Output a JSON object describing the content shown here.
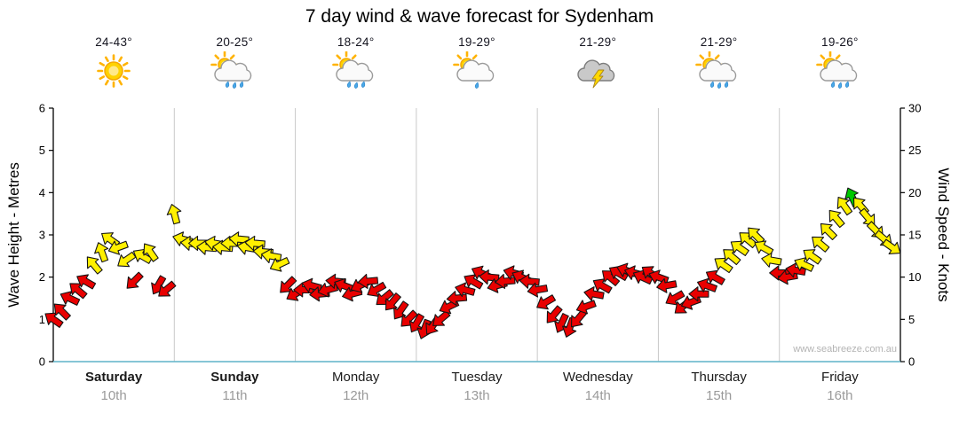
{
  "title": "7 day wind & wave forecast for Sydenham",
  "watermark": "www.seabreeze.com.au",
  "axes": {
    "left_title": "Wave Height - Metres",
    "right_title": "Wind Speed - Knots",
    "left_ticks": [
      0,
      1,
      2,
      3,
      4,
      5,
      6
    ],
    "right_ticks": [
      0,
      5,
      10,
      15,
      20,
      25,
      30
    ],
    "left_range": [
      0,
      6
    ],
    "right_range": [
      0,
      30
    ]
  },
  "days": [
    {
      "name": "Saturday",
      "date": "10th",
      "temp": "24-43°",
      "icon": "sunny",
      "bold": true
    },
    {
      "name": "Sunday",
      "date": "11th",
      "temp": "20-25°",
      "icon": "sun-showers",
      "bold": true
    },
    {
      "name": "Monday",
      "date": "12th",
      "temp": "18-24°",
      "icon": "sun-showers",
      "bold": false
    },
    {
      "name": "Tuesday",
      "date": "13th",
      "temp": "19-29°",
      "icon": "sun-cloud-shower",
      "bold": false
    },
    {
      "name": "Wednesday",
      "date": "14th",
      "temp": "21-29°",
      "icon": "thunderstorm",
      "bold": false
    },
    {
      "name": "Thursday",
      "date": "15th",
      "temp": "21-29°",
      "icon": "sun-showers",
      "bold": false
    },
    {
      "name": "Friday",
      "date": "16th",
      "temp": "19-26°",
      "icon": "sun-showers",
      "bold": false
    }
  ],
  "chart_data": {
    "type": "wind-arrows",
    "title": "7 day wind & wave forecast for Sydenham",
    "x_unit": "hours",
    "x_range": [
      0,
      168
    ],
    "y_axis": "knots",
    "y_range": [
      0,
      30
    ],
    "grid": "vertical-day-separators",
    "colors": {
      "light": "#E80000",
      "moderate": "#FFF000",
      "fresh": "#00C800"
    },
    "color_thresholds": {
      "yellow_min": 11,
      "green_min": 19
    },
    "points_format": [
      "hours_from_start",
      "wind_speed_knots",
      "arrow_direction_deg"
    ],
    "points": [
      [
        0,
        5,
        215
      ],
      [
        1.6,
        6,
        225
      ],
      [
        3.2,
        7.5,
        205
      ],
      [
        4.8,
        8.5,
        220
      ],
      [
        6.4,
        9.5,
        210
      ],
      [
        8,
        11.5,
        230
      ],
      [
        9.6,
        13,
        250
      ],
      [
        11.2,
        14.5,
        215
      ],
      [
        12.8,
        13.5,
        160
      ],
      [
        14.4,
        12,
        145
      ],
      [
        16,
        9.5,
        135
      ],
      [
        17.6,
        12.5,
        210
      ],
      [
        19.2,
        13,
        235
      ],
      [
        20.8,
        9,
        120
      ],
      [
        22.4,
        8.5,
        140
      ],
      [
        24,
        17.5,
        255
      ],
      [
        25.6,
        14.5,
        195
      ],
      [
        27.2,
        14,
        185
      ],
      [
        28.8,
        14,
        180
      ],
      [
        30.4,
        13.5,
        185
      ],
      [
        32,
        14,
        190
      ],
      [
        33.6,
        13.5,
        185
      ],
      [
        35.2,
        14,
        180
      ],
      [
        36.8,
        14.5,
        185
      ],
      [
        38.4,
        13.5,
        190
      ],
      [
        40,
        14,
        185
      ],
      [
        41.6,
        13,
        185
      ],
      [
        43.2,
        12.5,
        190
      ],
      [
        44.8,
        11.5,
        155
      ],
      [
        46.4,
        9,
        135
      ],
      [
        48,
        8,
        150
      ],
      [
        49.6,
        8.5,
        180
      ],
      [
        51.2,
        9,
        195
      ],
      [
        52.8,
        8,
        175
      ],
      [
        54.4,
        8.5,
        165
      ],
      [
        56,
        9.5,
        185
      ],
      [
        57.6,
        9,
        200
      ],
      [
        59.2,
        8,
        165
      ],
      [
        60.8,
        9,
        155
      ],
      [
        62.4,
        9.5,
        175
      ],
      [
        64,
        8.5,
        150
      ],
      [
        65.6,
        7.5,
        140
      ],
      [
        67.2,
        7,
        130
      ],
      [
        68.8,
        6,
        125
      ],
      [
        70.4,
        5,
        135
      ],
      [
        72,
        4.5,
        120
      ],
      [
        73.6,
        3.8,
        110
      ],
      [
        75.2,
        4.2,
        125
      ],
      [
        76.8,
        5,
        140
      ],
      [
        78.4,
        6.5,
        155
      ],
      [
        80,
        7.5,
        175
      ],
      [
        81.6,
        8.5,
        195
      ],
      [
        83.2,
        9.5,
        210
      ],
      [
        84.8,
        10.5,
        205
      ],
      [
        86.4,
        10,
        185
      ],
      [
        88,
        9,
        165
      ],
      [
        89.6,
        9.5,
        175
      ],
      [
        91.2,
        10.5,
        195
      ],
      [
        92.8,
        10,
        205
      ],
      [
        94.4,
        9.5,
        185
      ],
      [
        96,
        8.5,
        170
      ],
      [
        97.6,
        7,
        150
      ],
      [
        99.2,
        5.5,
        130
      ],
      [
        100.8,
        4.5,
        115
      ],
      [
        102.4,
        4,
        110
      ],
      [
        104,
        5,
        130
      ],
      [
        105.6,
        6.5,
        160
      ],
      [
        107.2,
        8,
        190
      ],
      [
        108.8,
        9,
        210
      ],
      [
        110.4,
        10,
        220
      ],
      [
        112,
        10.5,
        210
      ],
      [
        113.6,
        10.8,
        200
      ],
      [
        115.2,
        10.5,
        195
      ],
      [
        116.8,
        10,
        205
      ],
      [
        118.4,
        10.5,
        215
      ],
      [
        120,
        10,
        200
      ],
      [
        121.6,
        9,
        170
      ],
      [
        123.2,
        7.5,
        150
      ],
      [
        124.8,
        6.5,
        140
      ],
      [
        126.4,
        7,
        160
      ],
      [
        128,
        8,
        180
      ],
      [
        129.6,
        9,
        200
      ],
      [
        131.2,
        10,
        210
      ],
      [
        132.8,
        11.5,
        215
      ],
      [
        134.4,
        12.5,
        220
      ],
      [
        136,
        13.5,
        215
      ],
      [
        137.6,
        14.5,
        220
      ],
      [
        139.2,
        15,
        225
      ],
      [
        140.8,
        13.5,
        210
      ],
      [
        142.4,
        12,
        190
      ],
      [
        144,
        10.5,
        180
      ],
      [
        145.6,
        10,
        170
      ],
      [
        147.2,
        10.8,
        190
      ],
      [
        148.8,
        11.5,
        205
      ],
      [
        150.4,
        12.5,
        215
      ],
      [
        152,
        14,
        220
      ],
      [
        153.6,
        15.5,
        225
      ],
      [
        155.2,
        17,
        230
      ],
      [
        156.8,
        18.5,
        235
      ],
      [
        158.4,
        19.5,
        245
      ],
      [
        160,
        18.5,
        230
      ],
      [
        161.6,
        17,
        50
      ],
      [
        163.2,
        15.5,
        45
      ],
      [
        164.8,
        14.5,
        40
      ],
      [
        166.4,
        13.5,
        35
      ]
    ]
  }
}
